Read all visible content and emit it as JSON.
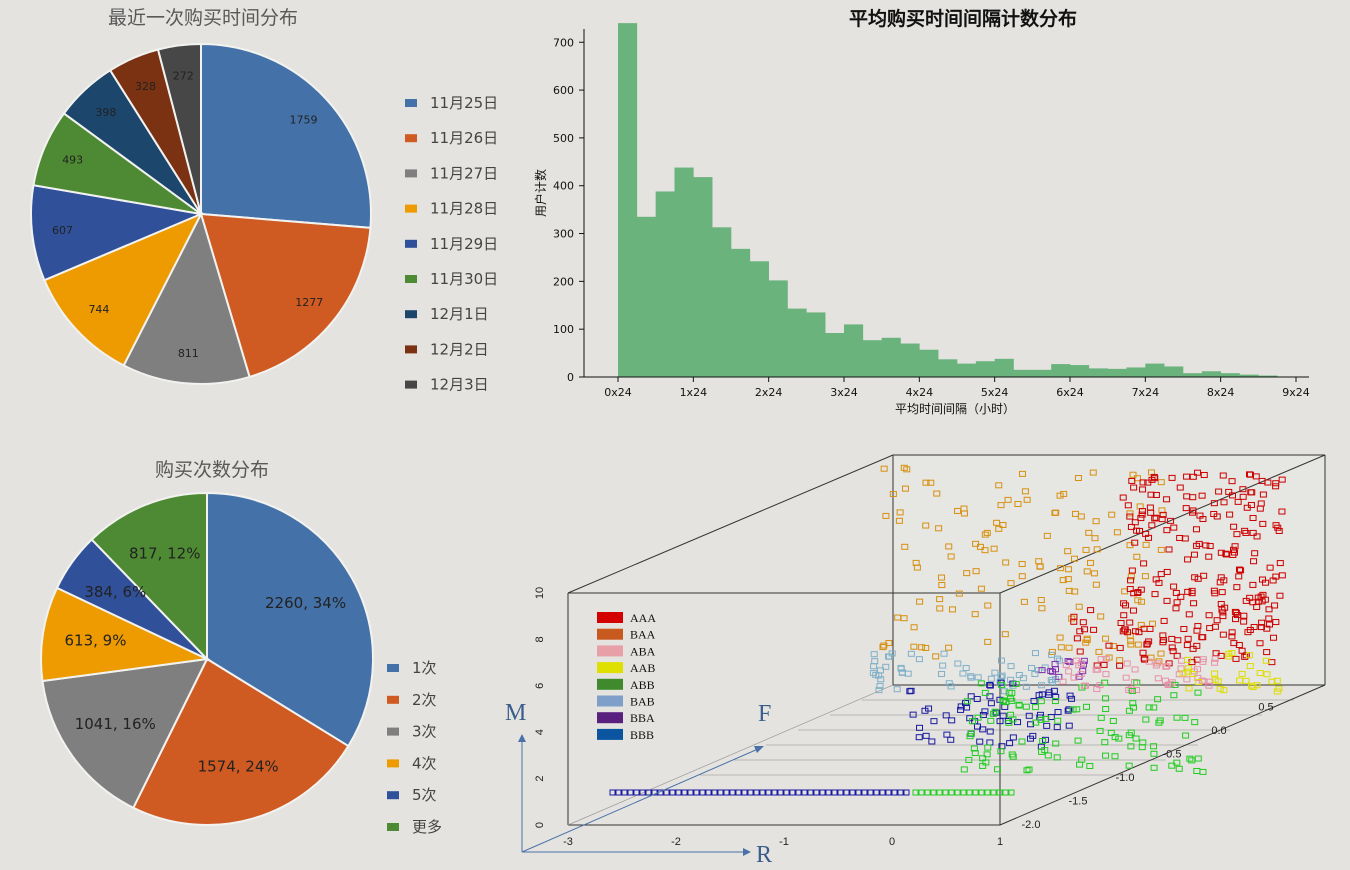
{
  "chart_data": [
    {
      "type": "pie",
      "title": "最近一次购买时间分布",
      "categories": [
        "11月25日",
        "11月26日",
        "11月27日",
        "11月28日",
        "11月29日",
        "11月30日",
        "12月1日",
        "12月2日",
        "12月3日"
      ],
      "values": [
        1759,
        1277,
        811,
        744,
        607,
        493,
        398,
        328,
        272
      ],
      "colors": [
        "#4472a8",
        "#cf5a22",
        "#7f7f7f",
        "#ed9b00",
        "#30509a",
        "#4e8a34",
        "#1d466d",
        "#7a3212",
        "#474747"
      ],
      "legend_position": "right"
    },
    {
      "type": "bar",
      "title": "平均购买时间间隔计数分布",
      "xlabel": "平均时间间隔（小时）",
      "ylabel": "用户计数",
      "x_ticks": [
        "0x24",
        "1x24",
        "2x24",
        "3x24",
        "4x24",
        "5x24",
        "6x24",
        "7x24",
        "8x24",
        "9x24"
      ],
      "xlim": [
        0,
        216
      ],
      "ylim": [
        0,
        720
      ],
      "y_ticks": [
        0,
        100,
        200,
        300,
        400,
        500,
        600,
        700
      ],
      "bin_width_hours": 6,
      "values": [
        740,
        335,
        388,
        438,
        418,
        313,
        268,
        242,
        202,
        143,
        135,
        92,
        110,
        77,
        82,
        70,
        57,
        37,
        28,
        33,
        38,
        15,
        15,
        27,
        25,
        18,
        17,
        20,
        28,
        22,
        8,
        12,
        8,
        5,
        3
      ],
      "color": "#6ab37c"
    },
    {
      "type": "pie",
      "title": "购买次数分布",
      "categories": [
        "1次",
        "2次",
        "3次",
        "4次",
        "5次",
        "更多"
      ],
      "values": [
        2260,
        1574,
        1041,
        613,
        384,
        817
      ],
      "labels": [
        "2260, 34%",
        "1574, 24%",
        "1041, 16%",
        "613, 9%",
        "384, 6%",
        "817, 12%"
      ],
      "colors": [
        "#4472a8",
        "#cf5a22",
        "#7f7f7f",
        "#ed9b00",
        "#30509a",
        "#4e8a34"
      ],
      "legend_position": "right"
    },
    {
      "type": "scatter",
      "axes": {
        "x": "R",
        "y": "F",
        "z": "M"
      },
      "x_ticks": [
        "-3",
        "-2",
        "-1",
        "0",
        "1"
      ],
      "y_ticks": [
        "-2.0",
        "-1.5",
        "-1.0",
        "-0.5",
        "0.0",
        "0.5"
      ],
      "z_ticks": [
        "0",
        "2",
        "4",
        "6",
        "8",
        "10"
      ],
      "legend": [
        "AAA",
        "BAA",
        "ABA",
        "AAB",
        "ABB",
        "BAB",
        "BBA",
        "BBB"
      ],
      "colors": [
        "#d40000",
        "#c85a1f",
        "#e8a0a8",
        "#e0e000",
        "#3e8a2c",
        "#7ea0c8",
        "#5a2080",
        "#0a54a0"
      ],
      "point_colors": {
        "AAA": "#cc0000",
        "BAA": "#d89010",
        "ABA": "#e890a8",
        "AAB": "#dddd00",
        "ABB": "#22cc22",
        "BAB": "#80b0c8",
        "BBA": "#8030b0",
        "BBB": "#1a1aa0"
      }
    }
  ]
}
